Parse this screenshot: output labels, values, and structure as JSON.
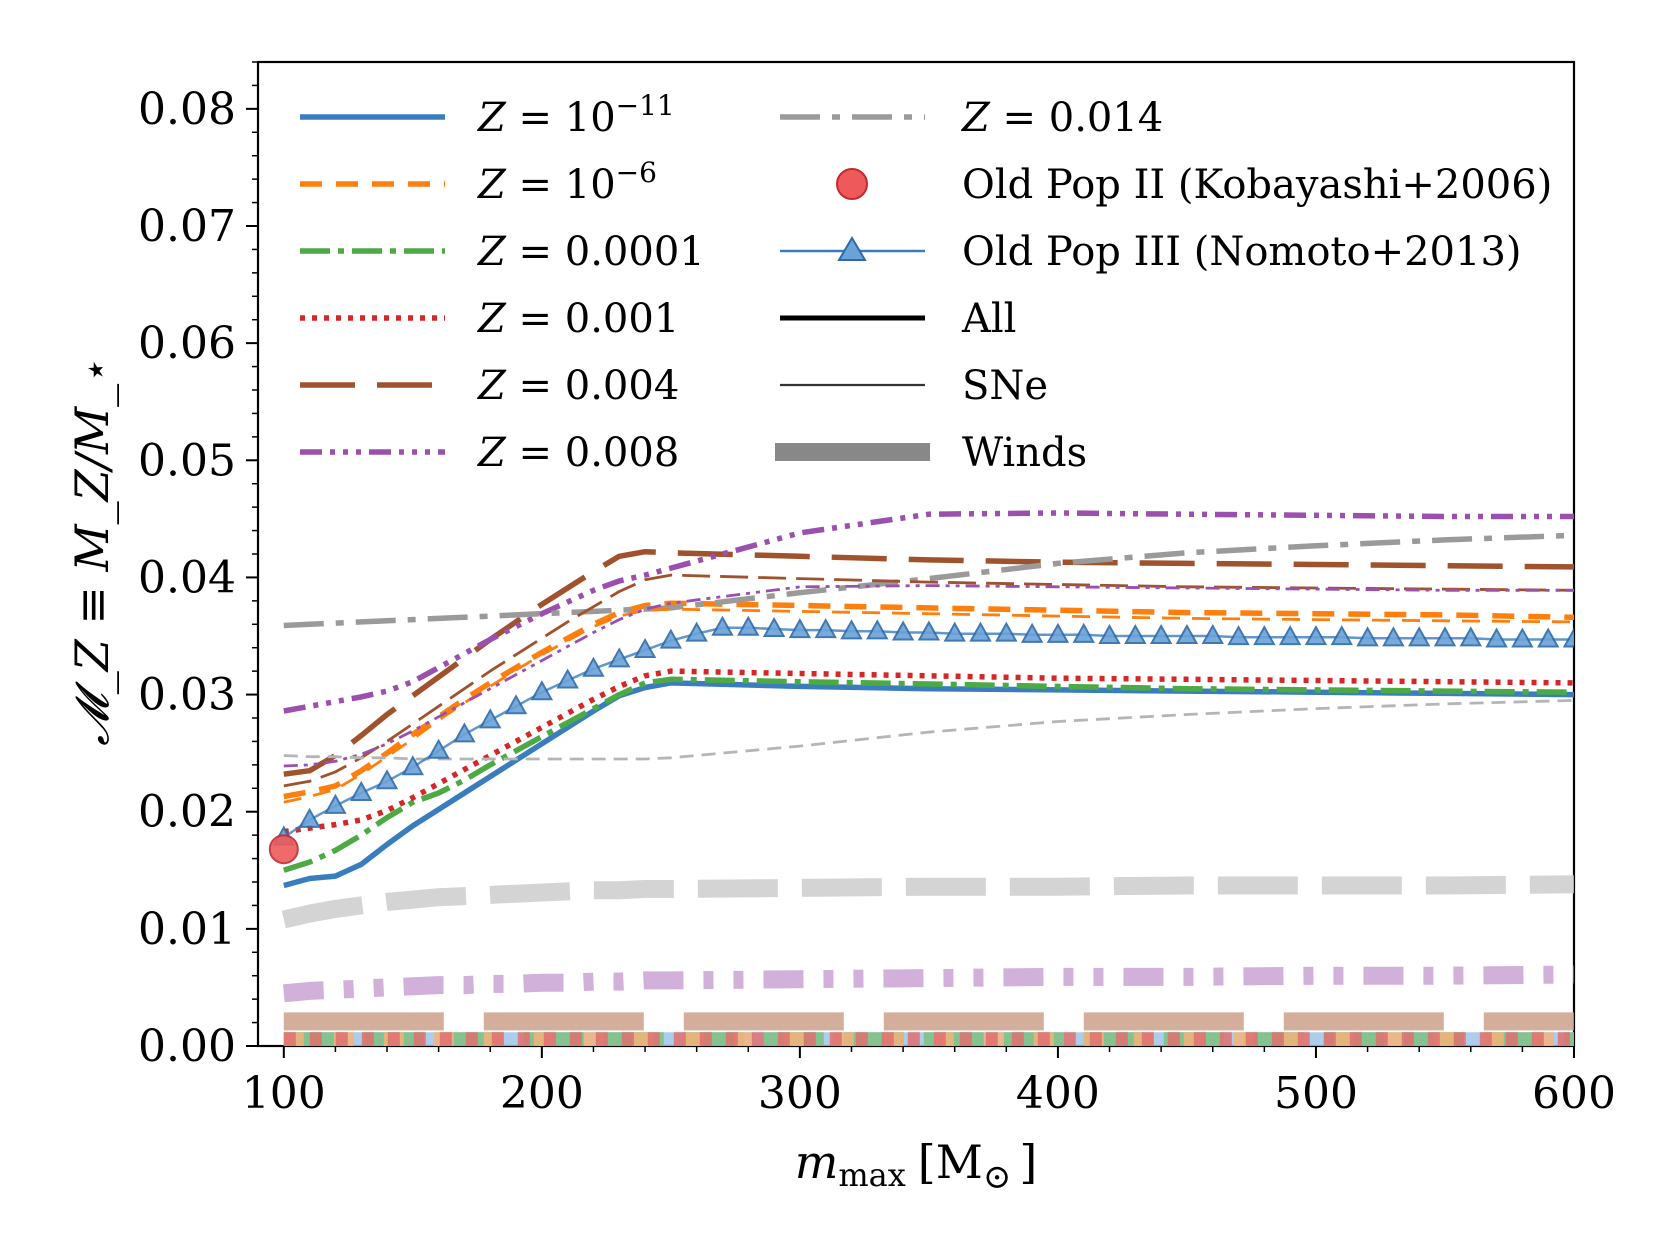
{
  "chart_data": {
    "type": "line",
    "xlabel": "m_max [M_sun]",
    "xlabel_main": "m",
    "xlabel_sub": "max",
    "xlabel_unit": "[M",
    "xlabel_unit_sym": "⊙",
    "xlabel_unit_close": "]",
    "ylabel": "𝓜_Z ≡ M_Z/M_⋆",
    "xlim": [
      90,
      600
    ],
    "ylim": [
      0,
      0.084
    ],
    "xticks": [
      100,
      200,
      300,
      400,
      500,
      600
    ],
    "xtick_labels": [
      "100",
      "200",
      "300",
      "400",
      "500",
      "600"
    ],
    "yticks": [
      0,
      0.01,
      0.02,
      0.03,
      0.04,
      0.05,
      0.06,
      0.07,
      0.08
    ],
    "ytick_labels": [
      "0.00",
      "0.01",
      "0.02",
      "0.03",
      "0.04",
      "0.05",
      "0.06",
      "0.07",
      "0.08"
    ],
    "x": [
      100,
      110,
      120,
      130,
      140,
      150,
      160,
      170,
      180,
      190,
      200,
      210,
      220,
      230,
      240,
      250,
      300,
      350,
      400,
      450,
      500,
      550,
      600
    ],
    "series": [
      {
        "name": "Z=1e-11",
        "color": "#3a7dbf",
        "dash": "",
        "component": "All",
        "values": [
          0.0137,
          0.0143,
          0.0145,
          0.0155,
          0.0172,
          0.0188,
          0.0202,
          0.0216,
          0.023,
          0.0244,
          0.0258,
          0.0272,
          0.0286,
          0.0299,
          0.0306,
          0.031,
          0.0307,
          0.0305,
          0.0304,
          0.0303,
          0.0302,
          0.0301,
          0.03
        ]
      },
      {
        "name": "Z=1e-6",
        "color": "#ff7f0e",
        "dash": "22,14",
        "component": "All",
        "values": [
          0.0213,
          0.0217,
          0.0222,
          0.0235,
          0.025,
          0.0266,
          0.0281,
          0.0296,
          0.031,
          0.0323,
          0.0336,
          0.0348,
          0.036,
          0.037,
          0.0376,
          0.0378,
          0.0376,
          0.0374,
          0.0372,
          0.037,
          0.0369,
          0.0368,
          0.0366
        ]
      },
      {
        "name": "Z=0.0001",
        "color": "#4caa45",
        "dash": "30,8,6,8",
        "component": "All",
        "values": [
          0.015,
          0.0157,
          0.0167,
          0.018,
          0.0195,
          0.0208,
          0.0216,
          0.0227,
          0.024,
          0.0252,
          0.0264,
          0.0276,
          0.0288,
          0.03,
          0.031,
          0.0313,
          0.0311,
          0.0309,
          0.0307,
          0.0305,
          0.0304,
          0.0303,
          0.0302
        ]
      },
      {
        "name": "Z=0.001",
        "color": "#d62728",
        "dash": "5,7",
        "component": "All",
        "values": [
          0.0183,
          0.0186,
          0.0189,
          0.0193,
          0.0201,
          0.0212,
          0.0224,
          0.0236,
          0.0248,
          0.026,
          0.0272,
          0.0284,
          0.0296,
          0.0307,
          0.0316,
          0.032,
          0.0318,
          0.0316,
          0.0314,
          0.0313,
          0.0312,
          0.0311,
          0.031
        ]
      },
      {
        "name": "Z=0.004",
        "color": "#a0522d",
        "dash": "55,22",
        "component": "All",
        "values": [
          0.0232,
          0.0235,
          0.0248,
          0.0265,
          0.0283,
          0.0299,
          0.0315,
          0.0331,
          0.0347,
          0.0362,
          0.0377,
          0.0391,
          0.0405,
          0.0418,
          0.0422,
          0.0421,
          0.0418,
          0.0415,
          0.0413,
          0.0412,
          0.0411,
          0.041,
          0.0409
        ]
      },
      {
        "name": "Z=0.008",
        "color": "#9b4fae",
        "dash": "22,8,5,8,5,8,5,8",
        "component": "All",
        "values": [
          0.0286,
          0.029,
          0.0294,
          0.0298,
          0.0303,
          0.0311,
          0.0323,
          0.0335,
          0.0347,
          0.0358,
          0.0369,
          0.0379,
          0.0389,
          0.0397,
          0.0402,
          0.0408,
          0.0438,
          0.0454,
          0.0455,
          0.0454,
          0.0453,
          0.0452,
          0.0452
        ]
      },
      {
        "name": "Z=0.014",
        "color": "#9a9a9a",
        "dash": "40,12,8,12",
        "component": "All",
        "values": [
          0.0359,
          0.036,
          0.0361,
          0.0362,
          0.0363,
          0.0364,
          0.0365,
          0.0366,
          0.0367,
          0.0368,
          0.0369,
          0.037,
          0.0371,
          0.0372,
          0.0373,
          0.0374,
          0.0387,
          0.0399,
          0.0412,
          0.0421,
          0.0427,
          0.0432,
          0.0436
        ]
      },
      {
        "name": "Z=1e-6 SNe",
        "color": "#ff7f0e",
        "dash": "18,12",
        "component": "SNe",
        "values": [
          0.0208,
          0.0213,
          0.0219,
          0.0232,
          0.0247,
          0.0262,
          0.0278,
          0.0293,
          0.0307,
          0.0321,
          0.0334,
          0.0346,
          0.0358,
          0.0367,
          0.0372,
          0.0373,
          0.0371,
          0.0369,
          0.0367,
          0.0365,
          0.0364,
          0.0363,
          0.0362
        ]
      },
      {
        "name": "Z=0.004 SNe",
        "color": "#a0522d",
        "dash": "28,10",
        "component": "SNe",
        "values": [
          0.0222,
          0.0226,
          0.0234,
          0.0246,
          0.026,
          0.0275,
          0.029,
          0.0305,
          0.032,
          0.0334,
          0.0348,
          0.0362,
          0.0375,
          0.0388,
          0.0398,
          0.0402,
          0.0399,
          0.0396,
          0.0394,
          0.0392,
          0.0391,
          0.039,
          0.0389
        ]
      },
      {
        "name": "Z=0.008 SNe",
        "color": "#9b4fae",
        "dash": "14,6,4,6,4,6",
        "component": "SNe",
        "values": [
          0.0239,
          0.024,
          0.0243,
          0.0249,
          0.0258,
          0.0269,
          0.0281,
          0.0293,
          0.0305,
          0.0317,
          0.0329,
          0.0341,
          0.0353,
          0.0364,
          0.0373,
          0.0378,
          0.0392,
          0.0393,
          0.0392,
          0.0391,
          0.039,
          0.0389,
          0.0389
        ]
      },
      {
        "name": "Z=0.014 SNe",
        "color": "#b5b5b5",
        "dash": "14,8",
        "component": "SNe",
        "values": [
          0.0248,
          0.0247,
          0.0247,
          0.0246,
          0.0246,
          0.0245,
          0.0245,
          0.0245,
          0.0245,
          0.0245,
          0.0245,
          0.0245,
          0.0245,
          0.0245,
          0.0245,
          0.0246,
          0.0256,
          0.0268,
          0.0277,
          0.0283,
          0.0288,
          0.0292,
          0.0295
        ]
      },
      {
        "name": "Z=0.014 Winds",
        "color": "#cccccc",
        "dash": "80,24",
        "component": "Winds",
        "values": [
          0.0108,
          0.0113,
          0.0117,
          0.012,
          0.0123,
          0.0125,
          0.0127,
          0.0128,
          0.0129,
          0.013,
          0.0131,
          0.0132,
          0.0133,
          0.0133,
          0.0134,
          0.0134,
          0.0135,
          0.0136,
          0.0136,
          0.0137,
          0.0137,
          0.0137,
          0.0138
        ]
      },
      {
        "name": "Z=0.008 Winds",
        "color": "#c9a3d4",
        "dash": "40,20,10,20,10,20",
        "component": "Winds",
        "values": [
          0.0045,
          0.0047,
          0.0048,
          0.0049,
          0.005,
          0.0051,
          0.0052,
          0.0052,
          0.0053,
          0.0053,
          0.0054,
          0.0054,
          0.0055,
          0.0055,
          0.0056,
          0.0056,
          0.0057,
          0.0058,
          0.0059,
          0.0059,
          0.006,
          0.006,
          0.0061
        ]
      },
      {
        "name": "Z=0.004 Winds",
        "color": "#caa089",
        "dash": "160,40",
        "component": "Winds",
        "values": [
          0.0021,
          0.0021,
          0.0021,
          0.0021,
          0.0021,
          0.0021,
          0.0021,
          0.0021,
          0.0021,
          0.0021,
          0.0021,
          0.0021,
          0.0021,
          0.0021,
          0.0021,
          0.0021,
          0.0021,
          0.0021,
          0.0021,
          0.0021,
          0.0021,
          0.0021,
          0.0021
        ]
      },
      {
        "name": "Z=1e-11 Winds",
        "color": "#9fc5e8",
        "dash": "",
        "component": "Winds",
        "values": [
          0.0004,
          0.0004,
          0.0004,
          0.0004,
          0.0004,
          0.0004,
          0.0004,
          0.0004,
          0.0004,
          0.0004,
          0.0004,
          0.0004,
          0.0004,
          0.0004,
          0.0004,
          0.0004,
          0.0004,
          0.0004,
          0.0004,
          0.0004,
          0.0004,
          0.0004,
          0.0004
        ]
      },
      {
        "name": "Z=0.0001 Winds",
        "color": "#7fbf7f",
        "dash": "60,20",
        "component": "Winds",
        "values": [
          0.0004,
          0.0004,
          0.0004,
          0.0004,
          0.0004,
          0.0004,
          0.0004,
          0.0004,
          0.0004,
          0.0004,
          0.0004,
          0.0004,
          0.0004,
          0.0004,
          0.0004,
          0.0004,
          0.0004,
          0.0004,
          0.0004,
          0.0004,
          0.0004,
          0.0004,
          0.0004
        ]
      },
      {
        "name": "Z=1e-6 Winds",
        "color": "#f5b27a",
        "dash": "20,30",
        "component": "Winds",
        "values": [
          0.0004,
          0.0004,
          0.0004,
          0.0004,
          0.0004,
          0.0004,
          0.0004,
          0.0004,
          0.0004,
          0.0004,
          0.0004,
          0.0004,
          0.0004,
          0.0004,
          0.0004,
          0.0004,
          0.0004,
          0.0004,
          0.0004,
          0.0004,
          0.0004,
          0.0004,
          0.0004
        ]
      },
      {
        "name": "Z=0.001 Winds",
        "color": "#e07070",
        "dash": "12,14",
        "component": "Winds",
        "values": [
          0.0004,
          0.0004,
          0.0004,
          0.0004,
          0.0004,
          0.0004,
          0.0004,
          0.0004,
          0.0004,
          0.0004,
          0.0004,
          0.0004,
          0.0004,
          0.0004,
          0.0004,
          0.0004,
          0.0004,
          0.0004,
          0.0004,
          0.0004,
          0.0004,
          0.0004,
          0.0004
        ]
      }
    ],
    "pop3": {
      "name": "Old Pop III (Nomoto+2013)",
      "color": "#3a7dbf",
      "x": [
        100,
        110,
        120,
        130,
        140,
        150,
        160,
        170,
        180,
        190,
        200,
        210,
        220,
        230,
        240,
        250,
        260,
        270,
        280,
        290,
        300,
        310,
        320,
        330,
        340,
        350,
        360,
        370,
        380,
        390,
        400,
        410,
        420,
        430,
        440,
        450,
        460,
        470,
        480,
        490,
        500,
        510,
        520,
        530,
        540,
        550,
        560,
        570,
        580,
        590,
        600
      ],
      "values": [
        0.0178,
        0.0193,
        0.0205,
        0.0216,
        0.0226,
        0.0238,
        0.0252,
        0.0266,
        0.0278,
        0.029,
        0.0302,
        0.0312,
        0.0322,
        0.033,
        0.0338,
        0.0346,
        0.0352,
        0.0357,
        0.0357,
        0.0356,
        0.0355,
        0.0355,
        0.0354,
        0.0354,
        0.0353,
        0.0353,
        0.0352,
        0.0352,
        0.0352,
        0.0351,
        0.0351,
        0.0351,
        0.035,
        0.035,
        0.035,
        0.035,
        0.035,
        0.0349,
        0.0349,
        0.0349,
        0.0349,
        0.0349,
        0.0348,
        0.0348,
        0.0348,
        0.0348,
        0.0348,
        0.0347,
        0.0347,
        0.0347,
        0.0347
      ]
    },
    "pop2": {
      "name": "Old Pop II (Kobayashi+2006)",
      "color": "#e8474a",
      "x": 100,
      "y": 0.0168
    },
    "legend": {
      "placement": "upper-left",
      "col1": [
        {
          "label": "10⁻¹¹",
          "prefix": "Z = ",
          "sup": "−11",
          "base": "10",
          "color": "#3a7dbf",
          "dash": ""
        },
        {
          "label": "10⁻⁶",
          "prefix": "Z = ",
          "sup": "−6",
          "base": "10",
          "color": "#ff7f0e",
          "dash": "22,14"
        },
        {
          "label": "0.0001",
          "prefix": "Z = ",
          "color": "#4caa45",
          "dash": "30,8,6,8"
        },
        {
          "label": "0.001",
          "prefix": "Z = ",
          "color": "#d62728",
          "dash": "5,7"
        },
        {
          "label": "0.004",
          "prefix": "Z = ",
          "color": "#a0522d",
          "dash": "55,22"
        },
        {
          "label": "0.008",
          "prefix": "Z = ",
          "color": "#9b4fae",
          "dash": "22,8,5,8,5,8,5,8"
        }
      ],
      "col2": [
        {
          "label": "Z = 0.014",
          "kind": "line",
          "color": "#9a9a9a",
          "dash": "40,12,8,12"
        },
        {
          "label": "Old Pop II (Kobayashi+2006)",
          "kind": "circle",
          "color": "#e8474a"
        },
        {
          "label": "Old Pop III (Nomoto+2013)",
          "kind": "triangle",
          "color": "#3a7dbf"
        },
        {
          "label": "All",
          "kind": "all",
          "color": "#000000"
        },
        {
          "label": "SNe",
          "kind": "sne",
          "color": "#333333"
        },
        {
          "label": "Winds",
          "kind": "winds",
          "color": "#888888"
        }
      ]
    }
  }
}
